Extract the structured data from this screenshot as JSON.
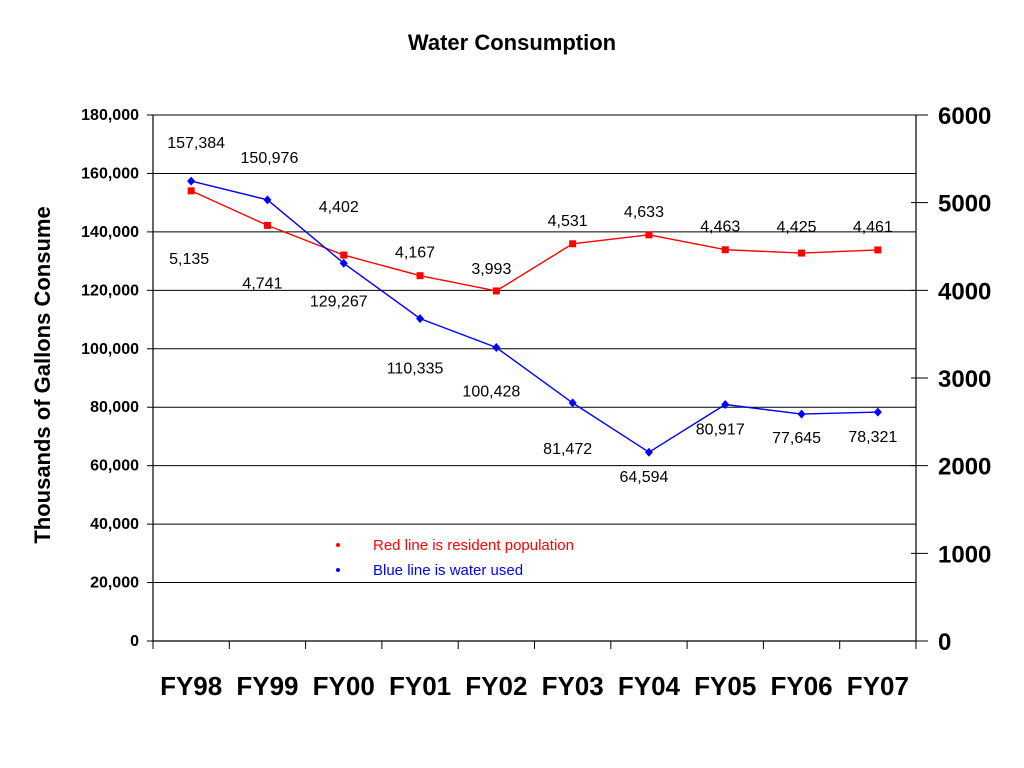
{
  "chart_data": {
    "type": "line",
    "title": "Water Consumption",
    "ylabel": "Thousands of Gallons Consume",
    "categories": [
      "FY98",
      "FY99",
      "FY00",
      "FY01",
      "FY02",
      "FY03",
      "FY04",
      "FY05",
      "FY06",
      "FY07"
    ],
    "ylim": [
      0,
      180000
    ],
    "y_ticks": [
      0,
      20000,
      40000,
      60000,
      80000,
      100000,
      120000,
      140000,
      160000,
      180000
    ],
    "y_tick_labels": [
      "0",
      "20,000",
      "40,000",
      "60,000",
      "80,000",
      "100,000",
      "120,000",
      "140,000",
      "160,000",
      "180,000"
    ],
    "y2lim": [
      0,
      6000
    ],
    "y2_ticks": [
      0,
      1000,
      2000,
      3000,
      4000,
      5000,
      6000
    ],
    "y2_tick_labels": [
      "0",
      "1000",
      "2000",
      "3000",
      "4000",
      "5000",
      "6000"
    ],
    "grid": true,
    "series": [
      {
        "color": "#ff0000",
        "axis": "right",
        "values": [
          5135,
          4741,
          4402,
          4167,
          3993,
          4531,
          4633,
          4463,
          4425,
          4461
        ],
        "labels": [
          "5,135",
          "4,741",
          "4,402",
          "4,167",
          "3,993",
          "4,531",
          "4,633",
          "4,463",
          "4,425",
          "4,461"
        ]
      },
      {
        "color": "#0000ff",
        "axis": "left",
        "values": [
          157384,
          150976,
          129267,
          110335,
          100428,
          81472,
          64594,
          80917,
          77645,
          78321
        ],
        "labels": [
          "157,384",
          "150,976",
          "129,267",
          "110,335",
          "100,428",
          "81,472",
          "64,594",
          "80,917",
          "77,645",
          "78,321"
        ]
      }
    ],
    "annotations": [
      {
        "text": "Red line is resident population",
        "color": "#ff0000"
      },
      {
        "text": "Blue line is water used",
        "color": "#0000ff"
      }
    ]
  }
}
